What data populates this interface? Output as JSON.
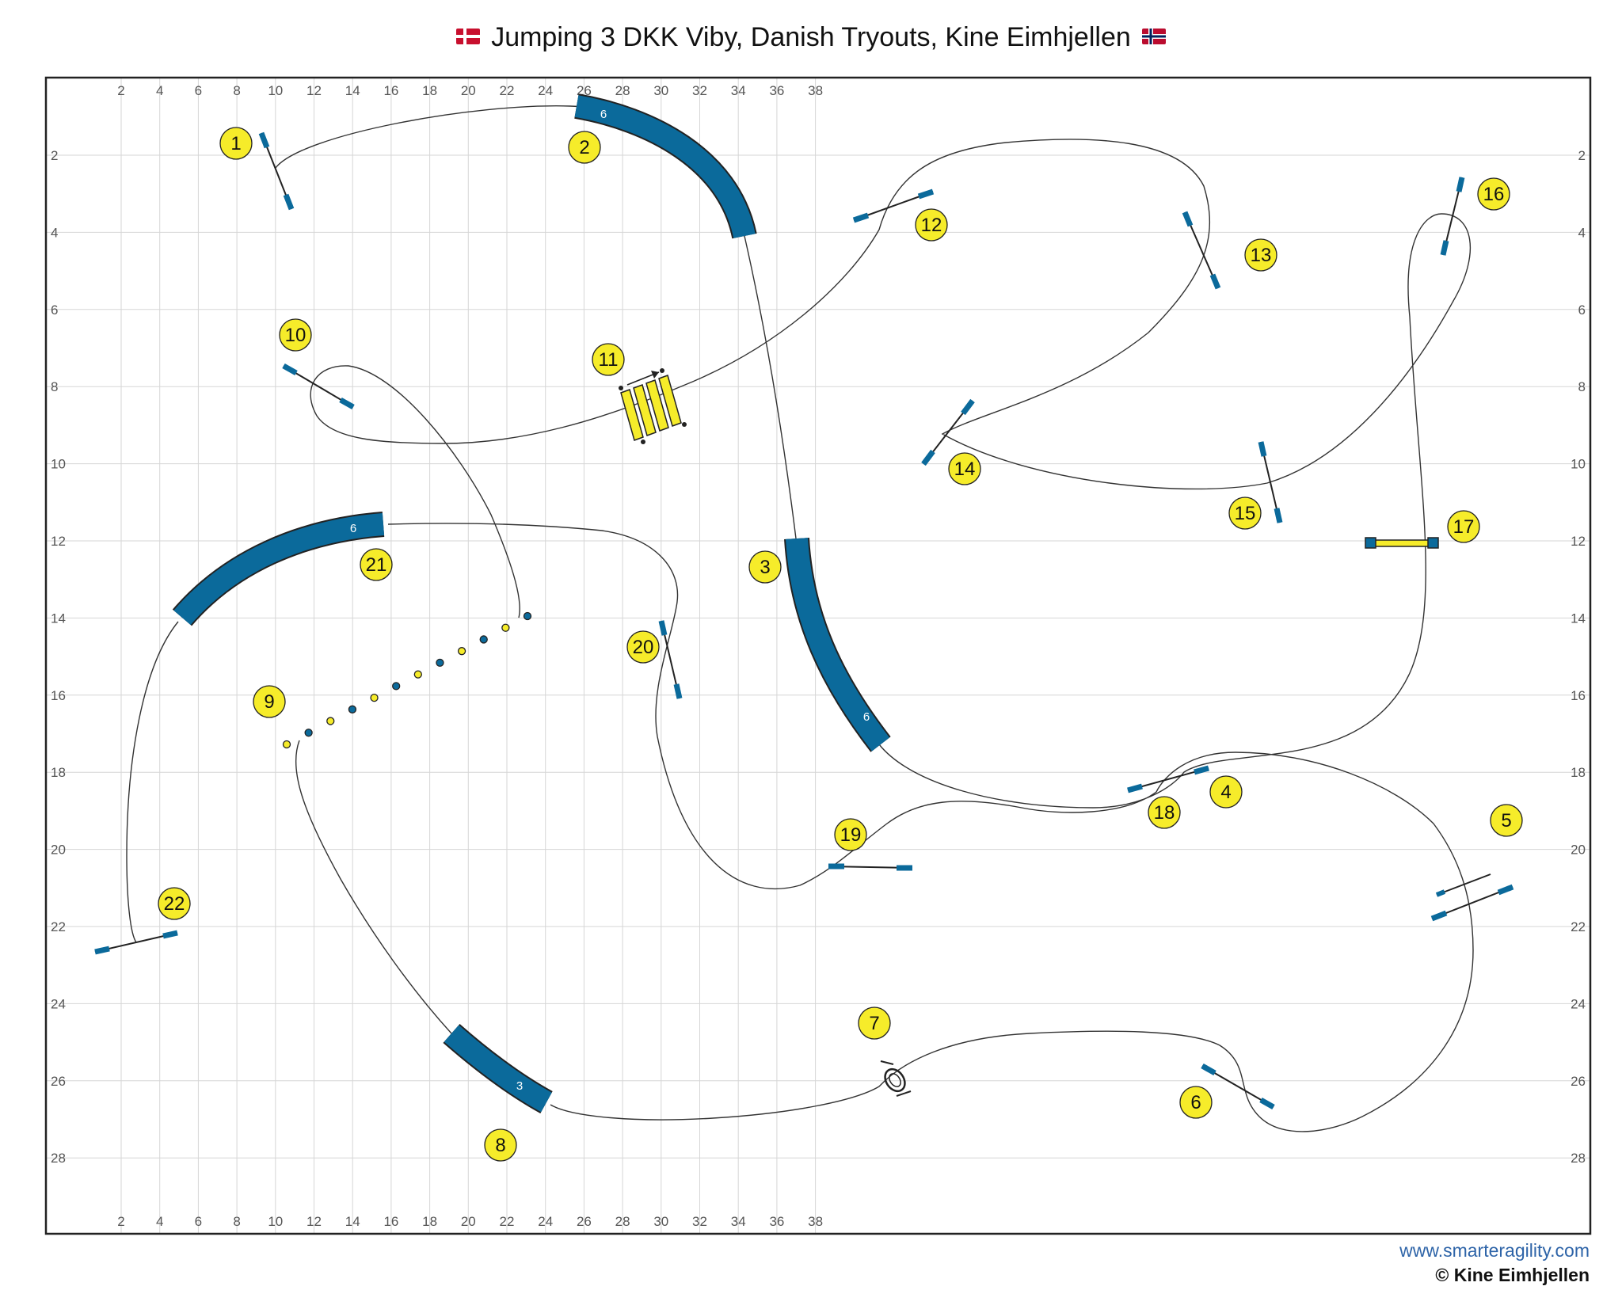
{
  "header": {
    "title": "Jumping 3 DKK Viby, Danish Tryouts, Kine Eimhjellen",
    "flag_left": "denmark-flag-icon",
    "flag_right": "norway-flag-icon"
  },
  "grid": {
    "x_ticks": [
      "2",
      "4",
      "6",
      "8",
      "10",
      "12",
      "14",
      "16",
      "18",
      "20",
      "22",
      "24",
      "26",
      "28",
      "30",
      "32",
      "34",
      "36",
      "38"
    ],
    "y_ticks": [
      "2",
      "4",
      "6",
      "8",
      "10",
      "12",
      "14",
      "16",
      "18",
      "20",
      "22",
      "24",
      "26",
      "28"
    ]
  },
  "colors": {
    "tunnel": "#0b6a9b",
    "marker": "#f6ec2a",
    "grid": "#d6d6d6",
    "path": "#333333",
    "url": "#2e64a8"
  },
  "obstacles": [
    {
      "number": "1",
      "type": "jump"
    },
    {
      "number": "2",
      "type": "tunnel",
      "length": "6"
    },
    {
      "number": "3",
      "type": "tunnel",
      "length": "6"
    },
    {
      "number": "4",
      "type": "jump"
    },
    {
      "number": "5",
      "type": "double-jump"
    },
    {
      "number": "6",
      "type": "jump"
    },
    {
      "number": "7",
      "type": "tire"
    },
    {
      "number": "8",
      "type": "tunnel",
      "length": "3"
    },
    {
      "number": "9",
      "type": "weave-poles"
    },
    {
      "number": "10",
      "type": "jump"
    },
    {
      "number": "11",
      "type": "long-jump"
    },
    {
      "number": "12",
      "type": "jump"
    },
    {
      "number": "13",
      "type": "jump"
    },
    {
      "number": "14",
      "type": "jump"
    },
    {
      "number": "15",
      "type": "jump"
    },
    {
      "number": "16",
      "type": "jump"
    },
    {
      "number": "17",
      "type": "wall"
    },
    {
      "number": "18",
      "type": "jump"
    },
    {
      "number": "19",
      "type": "jump"
    },
    {
      "number": "20",
      "type": "jump"
    },
    {
      "number": "21",
      "type": "tunnel",
      "length": "6"
    },
    {
      "number": "22",
      "type": "jump"
    }
  ],
  "footer": {
    "url": "www.smarteragility.com",
    "copyright": "© Kine Eimhjellen"
  }
}
